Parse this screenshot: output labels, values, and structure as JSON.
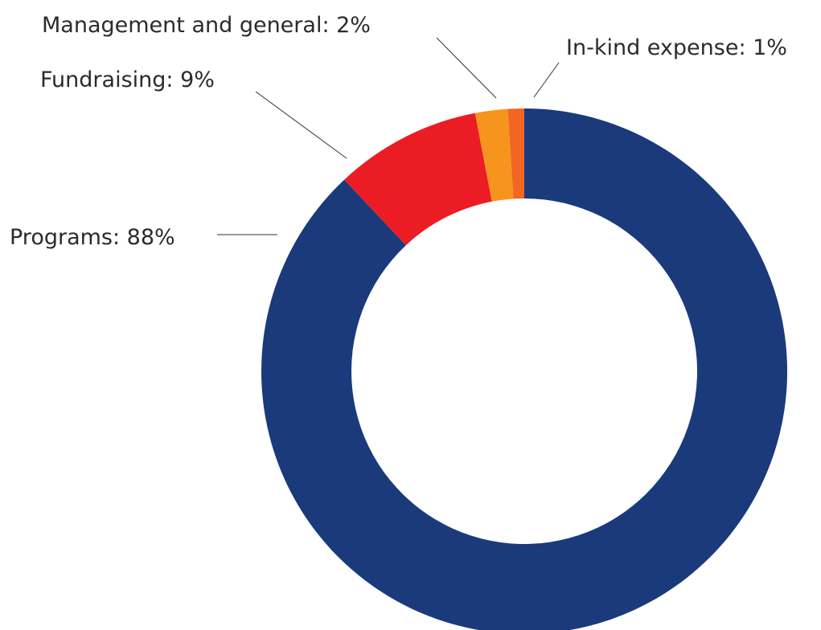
{
  "chart_data": {
    "type": "pie",
    "variant": "donut",
    "title": "",
    "slices": [
      {
        "label": "Programs",
        "value": 88,
        "display": "Programs: 88%",
        "color": "#1a3a7c"
      },
      {
        "label": "Fundraising",
        "value": 9,
        "display": "Fundraising: 9%",
        "color": "#ec1c24"
      },
      {
        "label": "Management and general",
        "value": 2,
        "display": "Management and general: 2%",
        "color": "#f7941d"
      },
      {
        "label": "In-kind expense",
        "value": 1,
        "display": "In-kind expense: 1%",
        "color": "#f26522"
      }
    ],
    "start_angle": "12 o'clock",
    "direction": "clockwise",
    "labels": "outside with leader lines"
  }
}
